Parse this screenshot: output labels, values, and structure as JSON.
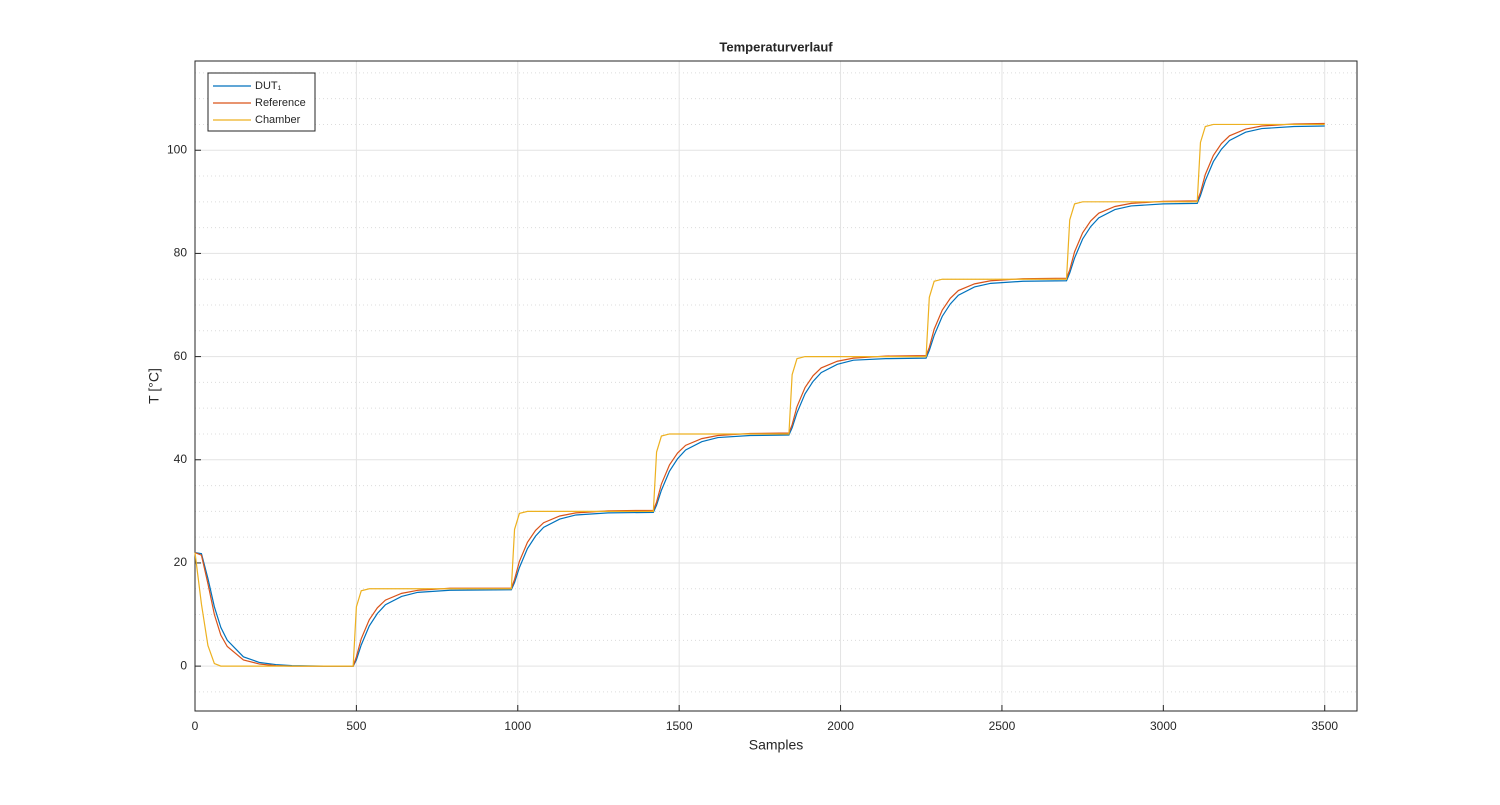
{
  "chart_data": {
    "type": "line",
    "title": "Temperaturverlauf",
    "xlabel": "Samples",
    "ylabel": "T [°C]",
    "x": [
      0,
      20,
      40,
      60,
      80,
      100,
      150,
      200,
      250,
      300,
      400,
      490,
      500,
      515,
      540,
      565,
      590,
      640,
      690,
      790,
      980,
      990,
      1005,
      1030,
      1055,
      1080,
      1130,
      1180,
      1280,
      1420,
      1430,
      1445,
      1470,
      1495,
      1520,
      1570,
      1620,
      1720,
      1840,
      1850,
      1865,
      1890,
      1915,
      1940,
      1990,
      2040,
      2140,
      2265,
      2275,
      2290,
      2315,
      2340,
      2365,
      2415,
      2465,
      2565,
      2700,
      2710,
      2725,
      2750,
      2775,
      2800,
      2850,
      2900,
      3000,
      3105,
      3115,
      3130,
      3155,
      3180,
      3205,
      3255,
      3305,
      3405,
      3500
    ],
    "series": [
      {
        "name": "DUT₁",
        "color": "#0072bd",
        "values": [
          22,
          21.8,
          17,
          11.5,
          7.5,
          5,
          1.8,
          0.7,
          0.3,
          0.1,
          0,
          0,
          1.2,
          4.1,
          7.8,
          10.2,
          11.9,
          13.5,
          14.3,
          14.7,
          14.8,
          16.2,
          19.1,
          22.8,
          25.2,
          26.9,
          28.5,
          29.3,
          29.7,
          29.8,
          31.2,
          34.1,
          37.8,
          40.2,
          41.9,
          43.5,
          44.3,
          44.7,
          44.8,
          46.2,
          49.1,
          52.8,
          55.2,
          56.9,
          58.5,
          59.3,
          59.6,
          59.7,
          61.2,
          64.1,
          67.8,
          70.2,
          71.9,
          73.5,
          74.2,
          74.6,
          74.7,
          76.2,
          79.1,
          82.8,
          85.2,
          86.9,
          88.5,
          89.2,
          89.6,
          89.7,
          91.2,
          94.1,
          97.8,
          100.2,
          101.9,
          103.5,
          104.2,
          104.6,
          104.7
        ]
      },
      {
        "name": "Reference",
        "color": "#d95319",
        "values": [
          22,
          21.5,
          16,
          10,
          6,
          3.8,
          1.2,
          0.4,
          0.1,
          0,
          0,
          0,
          1.8,
          5.3,
          9,
          11.3,
          12.8,
          14.1,
          14.7,
          15.1,
          15.1,
          16.8,
          20.3,
          24,
          26.3,
          27.8,
          29.1,
          29.7,
          30.1,
          30.2,
          31.8,
          35.3,
          39,
          41.3,
          42.8,
          44.1,
          44.7,
          45.1,
          45.2,
          46.8,
          50.3,
          54,
          56.3,
          57.8,
          59.1,
          59.7,
          60.1,
          60.2,
          61.8,
          65.3,
          69,
          71.3,
          72.8,
          74.1,
          74.7,
          75.1,
          75.2,
          76.8,
          80.3,
          84,
          86.3,
          87.8,
          89.1,
          89.7,
          90.1,
          90.2,
          91.8,
          95.3,
          99,
          101.3,
          102.8,
          104.1,
          104.7,
          105.1,
          105.2
        ]
      },
      {
        "name": "Chamber",
        "color": "#edb120",
        "values": [
          22,
          12,
          4,
          0.5,
          0,
          0,
          0,
          0,
          0,
          0,
          0,
          0,
          11.5,
          14.6,
          15,
          15,
          15,
          15,
          15,
          15,
          15,
          26.5,
          29.6,
          30,
          30,
          30,
          30,
          30,
          30,
          30,
          41.5,
          44.6,
          45,
          45,
          45,
          45,
          45,
          45,
          45,
          56.5,
          59.6,
          60,
          60,
          60,
          60,
          60,
          60,
          60,
          71.5,
          74.6,
          75,
          75,
          75,
          75,
          75,
          75,
          75,
          86.5,
          89.6,
          90,
          90,
          90,
          90,
          90,
          90,
          90,
          101.5,
          104.6,
          105,
          105,
          105,
          105,
          105,
          105,
          105
        ]
      }
    ],
    "xlim": [
      0,
      3600
    ],
    "ylim": [
      -8.7,
      117.3
    ],
    "xticks": [
      0,
      500,
      1000,
      1500,
      2000,
      2500,
      3000,
      3500
    ],
    "yticks": [
      0,
      20,
      40,
      60,
      80,
      100
    ],
    "yminorticks": [
      -5,
      5,
      10,
      15,
      25,
      30,
      35,
      45,
      50,
      55,
      65,
      70,
      75,
      85,
      90,
      95,
      105,
      110,
      115
    ],
    "grid": true,
    "minor_grid": true,
    "legend": "northwest"
  }
}
